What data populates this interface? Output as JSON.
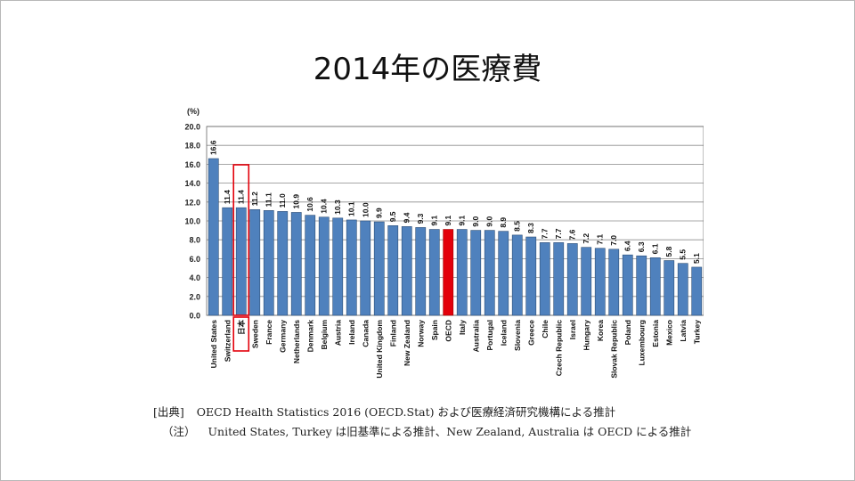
{
  "slide": {
    "title": "2014年の医療費",
    "source_prefix": "[出典]",
    "source_text": "OECD Health Statistics 2016 (OECD.Stat)  および医療経済研究機構による推計",
    "note_prefix": "（注）",
    "note_text": "United States,  Turkey は旧基準による推計、New Zealand,  Australia は OECD による推計"
  },
  "chart_data": {
    "type": "bar",
    "title": "",
    "ylabel": "(%)",
    "xlabel": "",
    "ylim": [
      0,
      20
    ],
    "yticks": [
      "0.0",
      "2.0",
      "4.0",
      "6.0",
      "8.0",
      "10.0",
      "12.0",
      "14.0",
      "16.0",
      "18.0",
      "20.0"
    ],
    "grid": true,
    "categories": [
      "United States",
      "Switzerland",
      "日本",
      "Sweden",
      "France",
      "Germany",
      "Netherlands",
      "Denmark",
      "Belgium",
      "Austria",
      "Ireland",
      "Canada",
      "United Kingdom",
      "Finland",
      "New Zealand",
      "Norway",
      "Spain",
      "OECD",
      "Italy",
      "Australia",
      "Portugal",
      "Iceland",
      "Slovenia",
      "Greece",
      "Chile",
      "Czech Republic",
      "Israel",
      "Hungary",
      "Korea",
      "Slovak Republic",
      "Poland",
      "Luxembourg",
      "Estonia",
      "Mexico",
      "Latvia",
      "Turkey"
    ],
    "values": [
      16.6,
      11.4,
      11.4,
      11.2,
      11.1,
      11.0,
      10.9,
      10.6,
      10.4,
      10.3,
      10.1,
      10.0,
      9.9,
      9.5,
      9.4,
      9.3,
      9.1,
      9.1,
      9.1,
      9.0,
      9.0,
      8.9,
      8.5,
      8.3,
      7.7,
      7.7,
      7.6,
      7.2,
      7.1,
      7.0,
      6.4,
      6.3,
      6.1,
      5.8,
      5.5,
      5.1
    ],
    "value_labels": [
      "16.6",
      "11.4",
      "11.4",
      "11.2",
      "11.1",
      "11.0",
      "10.9",
      "10.6",
      "10.4",
      "10.3",
      "10.1",
      "10.0",
      "9.9",
      "9.5",
      "9.4",
      "9.3",
      "9.1",
      "9.1",
      "9.1",
      "9.0",
      "9.0",
      "8.9",
      "8.5",
      "8.3",
      "7.7",
      "7.7",
      "7.6",
      "7.2",
      "7.1",
      "7.0",
      "6.4",
      "6.3",
      "6.1",
      "5.8",
      "5.5",
      "5.1"
    ],
    "highlight": {
      "category": "日本",
      "style": "outline",
      "color": "#e3000b"
    },
    "emphasis": {
      "category": "OECD",
      "color": "#e3000b"
    },
    "bar_color": "#4f81bd",
    "bar_edge_color": "#2c4d75"
  }
}
